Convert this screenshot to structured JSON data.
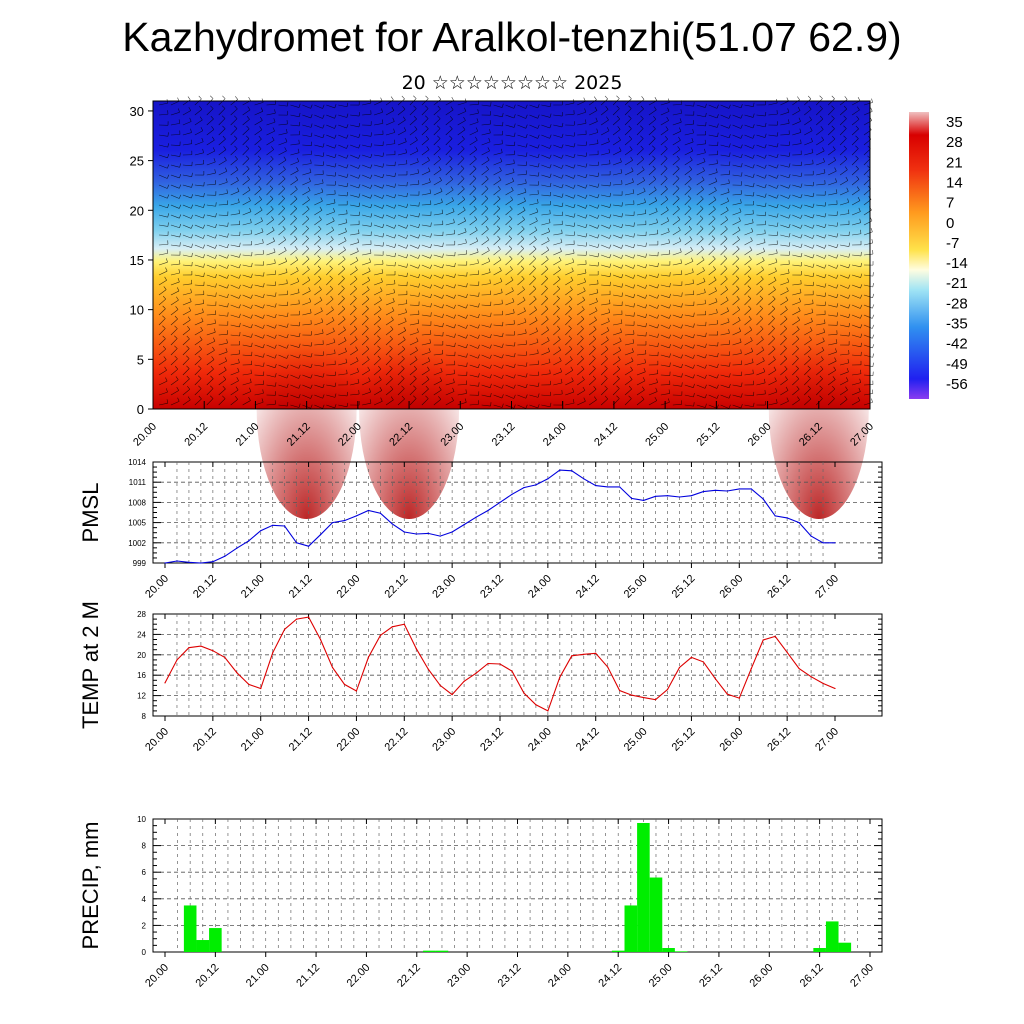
{
  "header": {
    "title": "Kazhydromet for Aralkol-tenzhi(51.07 62.9)",
    "subtitle": "20 ☆☆☆☆☆☆☆☆ 2025"
  },
  "time_axis_labels": [
    "20.00",
    "20.12",
    "21.00",
    "21.12",
    "22.00",
    "22.12",
    "23.00",
    "23.12",
    "24.00",
    "24.12",
    "25.00",
    "25.12",
    "26.00",
    "26.12",
    "27.00"
  ],
  "chart_data": [
    {
      "type": "heatmap",
      "name_hint": "vertical cross-section",
      "x_labels": [
        "20.00",
        "20.12",
        "21.00",
        "21.12",
        "22.00",
        "22.12",
        "23.00",
        "23.12",
        "24.00",
        "24.12",
        "25.00",
        "25.12",
        "26.00",
        "26.12",
        "27.00"
      ],
      "y_ticks": [
        0,
        5,
        10,
        15,
        20,
        25,
        30
      ],
      "ylim": [
        0,
        31
      ],
      "xlim": [
        0,
        168
      ],
      "colorbar_labels": [
        "35",
        "28",
        "21",
        "14",
        "7",
        "0",
        "-7",
        "-14",
        "-21",
        "-28",
        "-35",
        "-42",
        "-49",
        "-56"
      ],
      "colors": {
        "hot": "#c00000",
        "warm": "#ff8c1a",
        "neutral": "#ffff66",
        "cool": "#8fd8f0",
        "cold": "#1a1ae6",
        "coldest": "#1010c0"
      },
      "wind_barbs": true
    },
    {
      "type": "line",
      "ylabel": "PMSL",
      "ylim": [
        999,
        1014
      ],
      "y_ticks": [
        999,
        1002,
        1005,
        1008,
        1011,
        1014
      ],
      "x_labels": [
        "20.00",
        "20.12",
        "21.00",
        "21.12",
        "22.00",
        "22.12",
        "23.00",
        "23.12",
        "24.00",
        "24.12",
        "25.00",
        "25.12",
        "26.00",
        "26.12",
        "27.00"
      ],
      "x": [
        0,
        3,
        6,
        9,
        12,
        15,
        18,
        21,
        24,
        27,
        30,
        33,
        36,
        39,
        42,
        45,
        48,
        51,
        54,
        57,
        60,
        63,
        66,
        69,
        72,
        75,
        78,
        81,
        84,
        87,
        90,
        93,
        96,
        99,
        102,
        105,
        108,
        111,
        114,
        117,
        120,
        123,
        126,
        129,
        132,
        135,
        138,
        141,
        144,
        147,
        150,
        153,
        156,
        159,
        162,
        165,
        168
      ],
      "values": [
        999.0,
        999.3,
        999.1,
        999.0,
        999.2,
        1000.0,
        1001.2,
        1002.3,
        1003.8,
        1004.6,
        1004.5,
        1002.0,
        1001.5,
        1003.2,
        1005.0,
        1005.3,
        1006.0,
        1006.8,
        1006.4,
        1004.8,
        1003.6,
        1003.3,
        1003.4,
        1003.0,
        1003.6,
        1004.7,
        1005.8,
        1006.8,
        1008.0,
        1009.2,
        1010.2,
        1010.6,
        1011.5,
        1012.8,
        1012.7,
        1011.5,
        1010.5,
        1010.3,
        1010.3,
        1008.6,
        1008.3,
        1008.9,
        1009.0,
        1008.8,
        1009.0,
        1009.6,
        1009.8,
        1009.7,
        1010.0,
        1010.0,
        1008.5,
        1006.0,
        1005.7,
        1005.0,
        1003.0,
        1002.0,
        1002.0
      ],
      "series_color": "#0000dd"
    },
    {
      "type": "line",
      "ylabel": "TEMP at 2 M",
      "ylim": [
        8,
        28
      ],
      "y_ticks": [
        8,
        12,
        16,
        20,
        24,
        28
      ],
      "x_labels": [
        "20.00",
        "20.12",
        "21.00",
        "21.12",
        "22.00",
        "22.12",
        "23.00",
        "23.12",
        "24.00",
        "24.12",
        "25.00",
        "25.12",
        "26.00",
        "26.12",
        "27.00"
      ],
      "x": [
        0,
        3,
        6,
        9,
        12,
        15,
        18,
        21,
        24,
        27,
        30,
        33,
        36,
        39,
        42,
        45,
        48,
        51,
        54,
        57,
        60,
        63,
        66,
        69,
        72,
        75,
        78,
        81,
        84,
        87,
        90,
        93,
        96,
        99,
        102,
        105,
        108,
        111,
        114,
        117,
        120,
        123,
        126,
        129,
        132,
        135,
        138,
        141,
        144,
        147,
        150,
        153,
        156,
        159,
        162,
        165,
        168
      ],
      "values": [
        14.5,
        19.0,
        21.4,
        21.7,
        20.8,
        19.5,
        16.5,
        14.2,
        13.4,
        20.4,
        25.0,
        27.0,
        27.4,
        23.0,
        17.5,
        14.2,
        12.9,
        19.5,
        23.8,
        25.5,
        26.0,
        21.2,
        17.2,
        14.0,
        12.2,
        14.8,
        16.4,
        18.3,
        18.2,
        16.8,
        12.5,
        10.2,
        9.0,
        15.6,
        19.8,
        20.1,
        20.3,
        17.6,
        13.0,
        12.1,
        11.6,
        11.2,
        13.2,
        17.5,
        19.5,
        18.6,
        15.3,
        12.3,
        11.5,
        17.3,
        22.9,
        23.6,
        20.5,
        17.3,
        15.7,
        14.4,
        13.4
      ],
      "series_color": "#dd0000"
    },
    {
      "type": "bar",
      "ylabel": "PRECIP, mm",
      "ylim": [
        0,
        10
      ],
      "y_ticks": [
        0,
        2,
        4,
        6,
        8,
        10
      ],
      "x_labels": [
        "20.00",
        "20.12",
        "21.00",
        "21.12",
        "22.00",
        "22.12",
        "23.00",
        "23.12",
        "24.00",
        "24.12",
        "25.00",
        "25.12",
        "26.00",
        "26.12",
        "27.00"
      ],
      "bar_width_hours": 3,
      "x": [
        6,
        9,
        12,
        63,
        66,
        108,
        111,
        114,
        117,
        120,
        123,
        156,
        159,
        162
      ],
      "values": [
        3.5,
        0.9,
        1.8,
        0.1,
        0.1,
        0.1,
        3.5,
        9.7,
        5.6,
        0.3,
        0.05,
        0.3,
        2.3,
        0.7
      ],
      "series_color": "#00ee00"
    }
  ]
}
